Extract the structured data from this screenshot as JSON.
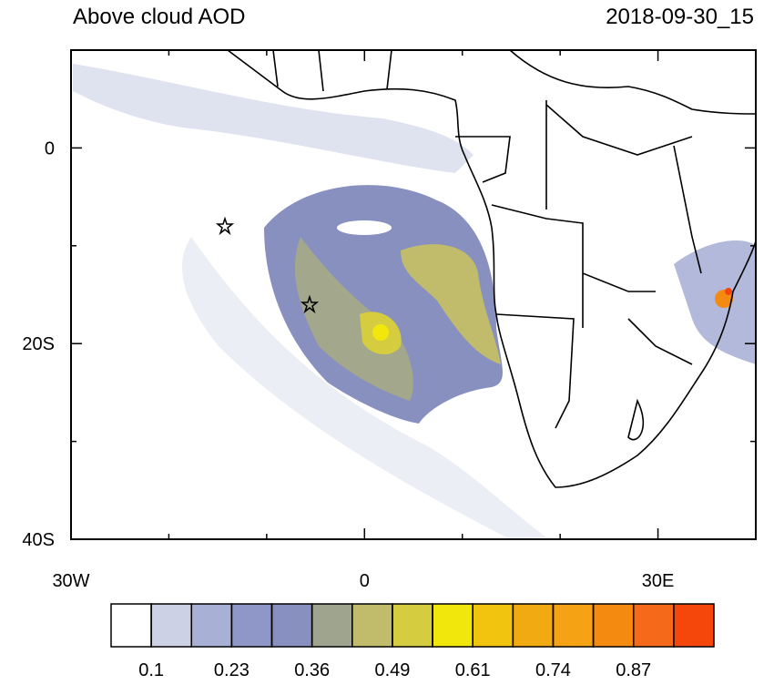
{
  "chart_data": {
    "type": "map",
    "title": "Above cloud AOD",
    "subtitle": "2018-09-30_15",
    "xlim": [
      -30,
      40
    ],
    "ylim": [
      -40,
      10
    ],
    "xticks": [
      {
        "value": -30,
        "label": "30W"
      },
      0,
      {
        "value": 30,
        "label": "30E"
      }
    ],
    "yticks": [
      0,
      {
        "value": -20,
        "label": "20S"
      },
      {
        "value": -40,
        "label": "40S"
      }
    ],
    "xminor_ticks": [
      -20,
      -10,
      10,
      20,
      40
    ],
    "yminor_ticks": [
      10,
      -10,
      -30
    ],
    "colorbar": {
      "colors": [
        "#ffffff",
        "#cdd1e6",
        "#a9b0d5",
        "#8e97c7",
        "#8890bf",
        "#9fa48f",
        "#c1bc6b",
        "#d5cc3f",
        "#f1e70d",
        "#f0c40f",
        "#f2aa12",
        "#f5a215",
        "#f48b10",
        "#f46a1a",
        "#f5460b"
      ],
      "levels": [
        0.1,
        0.164,
        0.23,
        0.293,
        0.36,
        0.421,
        0.49,
        0.55,
        0.61,
        0.678,
        0.74,
        0.806,
        0.87,
        0.935
      ],
      "ticks": [
        0.1,
        0.23,
        0.36,
        0.49,
        0.61,
        0.74,
        0.87
      ]
    }
  }
}
